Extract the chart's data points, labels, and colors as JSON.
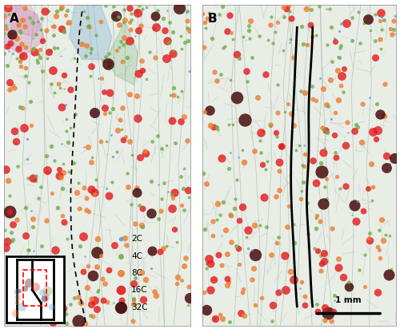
{
  "figure_width": 5.0,
  "figure_height": 4.12,
  "dpi": 100,
  "panel_bg": "#e8ede6",
  "fig_bg": "#ffffff",
  "panel_A_label": "A",
  "panel_B_label": "B",
  "legend_labels": [
    "2C",
    "4C",
    "8C",
    "16C",
    "32C"
  ],
  "legend_colors": [
    "#5b9bd5",
    "#70ad47",
    "#ed7d31",
    "#e31a1c",
    "#3d0000"
  ],
  "scale_bar_label": "1 mm",
  "colors": {
    "2C": "#5b9bd5",
    "4C": "#70ad47",
    "8C": "#ed7d31",
    "16C": "#e31a1c",
    "32C": "#3d0000"
  },
  "alpha": 0.8,
  "cell_line_color": "#b0beb0",
  "vascular_color": "#9aaa9a"
}
